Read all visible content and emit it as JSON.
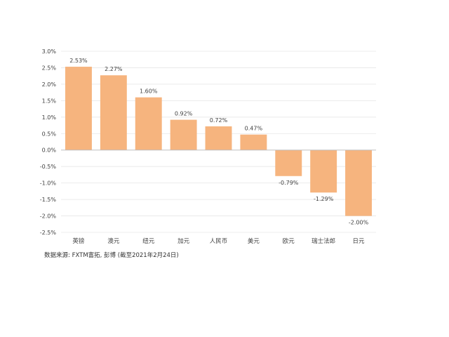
{
  "chart_data": {
    "type": "bar",
    "title": "",
    "xlabel": "",
    "ylabel": "",
    "categories": [
      "英镑",
      "澳元",
      "纽元",
      "加元",
      "人民币",
      "美元",
      "欧元",
      "瑞士法郎",
      "日元"
    ],
    "values": [
      2.53,
      2.27,
      1.6,
      0.92,
      0.72,
      0.47,
      -0.79,
      -1.29,
      -2.0
    ],
    "data_labels": [
      "2.53%",
      "2.27%",
      "1.60%",
      "0.92%",
      "0.72%",
      "0.47%",
      "-0.79%",
      "-1.29%",
      "-2.00%"
    ],
    "ylim": [
      -2.5,
      3.0
    ],
    "yticks": [
      3.0,
      2.5,
      2.0,
      1.5,
      1.0,
      0.5,
      0.0,
      -0.5,
      -1.0,
      -1.5,
      -2.0,
      -2.5
    ],
    "ytick_labels": [
      "3.0%",
      "2.5%",
      "2.0%",
      "1.5%",
      "1.0%",
      "0.5%",
      "0.0%",
      "-0.5%",
      "-1.0%",
      "-1.5%",
      "-2.0%",
      "-2.5%"
    ],
    "grid": true,
    "legend": "none",
    "colors": {
      "bar": "#F6B47E",
      "grid": "#E6E6E6",
      "axis": "#BFBFBF",
      "text": "#404040"
    }
  },
  "source_note": "数据来源: FXTM富拓, 彭博 (截至2021年2月24日)"
}
